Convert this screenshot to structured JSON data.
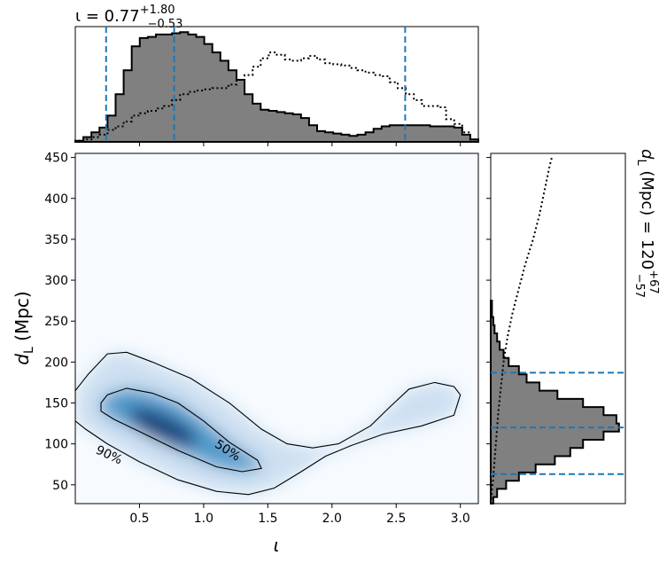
{
  "chart_data": {
    "type": "corner",
    "main": {
      "type": "heatmap",
      "xlabel": "ι",
      "ylabel": "d_L (Mpc)",
      "xlim": [
        0.0,
        3.14
      ],
      "ylim": [
        27,
        455
      ],
      "xticks": [
        "0.5",
        "1.0",
        "1.5",
        "2.0",
        "2.5",
        "3.0"
      ],
      "yticks": [
        "50",
        "100",
        "150",
        "200",
        "250",
        "300",
        "350",
        "400",
        "450"
      ],
      "colormap": "Blues",
      "density_peak": {
        "x": 0.65,
        "y": 122
      },
      "contours": [
        {
          "label": "50%",
          "points": [
            [
              0.2,
              150
            ],
            [
              0.25,
              160
            ],
            [
              0.4,
              168
            ],
            [
              0.6,
              162
            ],
            [
              0.8,
              150
            ],
            [
              1.0,
              128
            ],
            [
              1.2,
              102
            ],
            [
              1.42,
              80
            ],
            [
              1.45,
              70
            ],
            [
              1.3,
              66
            ],
            [
              1.1,
              72
            ],
            [
              0.8,
              92
            ],
            [
              0.5,
              115
            ],
            [
              0.3,
              130
            ],
            [
              0.2,
              140
            ]
          ]
        },
        {
          "label": "90%",
          "points": [
            [
              0.0,
              165
            ],
            [
              0.1,
              185
            ],
            [
              0.25,
              210
            ],
            [
              0.4,
              212
            ],
            [
              0.6,
              200
            ],
            [
              0.9,
              180
            ],
            [
              1.2,
              150
            ],
            [
              1.45,
              118
            ],
            [
              1.65,
              100
            ],
            [
              1.85,
              95
            ],
            [
              2.05,
              100
            ],
            [
              2.3,
              122
            ],
            [
              2.45,
              145
            ],
            [
              2.6,
              167
            ],
            [
              2.8,
              175
            ],
            [
              2.95,
              170
            ],
            [
              3.0,
              160
            ],
            [
              2.95,
              135
            ],
            [
              2.7,
              122
            ],
            [
              2.4,
              112
            ],
            [
              2.15,
              98
            ],
            [
              1.95,
              85
            ],
            [
              1.75,
              65
            ],
            [
              1.55,
              46
            ],
            [
              1.35,
              38
            ],
            [
              1.1,
              42
            ],
            [
              0.8,
              56
            ],
            [
              0.5,
              78
            ],
            [
              0.25,
              100
            ],
            [
              0.08,
              118
            ],
            [
              0.0,
              128
            ]
          ]
        }
      ]
    },
    "top_histogram": {
      "type": "histogram",
      "variable": "ι",
      "title_value": "0.77",
      "title_upper": "+1.80",
      "title_lower": "−0.53",
      "quantile_lines": [
        0.24,
        0.77,
        2.57
      ],
      "range": [
        0.0,
        3.14
      ],
      "bins": 50,
      "posterior": [
        1,
        4,
        8,
        12,
        22,
        40,
        60,
        80,
        87,
        88,
        90,
        90,
        91,
        92,
        90,
        88,
        82,
        75,
        68,
        60,
        52,
        40,
        32,
        27,
        26,
        25,
        24,
        23,
        20,
        14,
        9,
        8,
        7,
        6,
        5,
        6,
        8,
        11,
        13,
        14,
        14,
        14,
        14,
        14,
        13,
        13,
        13,
        12,
        6,
        2
      ],
      "prior": [
        1,
        2,
        4,
        6,
        10,
        13,
        17,
        22,
        24,
        26,
        28,
        30,
        35,
        40,
        42,
        43,
        44,
        45,
        45,
        48,
        52,
        56,
        63,
        70,
        75,
        73,
        69,
        68,
        70,
        72,
        69,
        66,
        65,
        64,
        62,
        60,
        58,
        56,
        55,
        50,
        45,
        40,
        35,
        30,
        30,
        29,
        19,
        15,
        8,
        2
      ]
    },
    "right_histogram": {
      "type": "histogram",
      "orientation": "horizontal",
      "variable": "d_L (Mpc)",
      "title_prefix": "d_L (Mpc) = ",
      "title_value": "120",
      "title_upper": "+67",
      "title_lower": "−57",
      "quantile_lines": [
        63,
        120,
        187
      ],
      "range": [
        27,
        455
      ],
      "bins_edges": [
        27,
        35,
        45,
        55,
        65,
        75,
        85,
        95,
        105,
        115,
        125,
        135,
        145,
        155,
        165,
        175,
        185,
        195,
        205,
        215,
        225,
        235,
        245,
        255,
        265,
        275
      ],
      "posterior": [
        2,
        5,
        12,
        22,
        35,
        50,
        62,
        72,
        88,
        100,
        98,
        88,
        72,
        52,
        38,
        28,
        22,
        14,
        10,
        7,
        5,
        3,
        2,
        1,
        1
      ],
      "prior_curve": [
        [
          0,
          27
        ],
        [
          2,
          60
        ],
        [
          4,
          100
        ],
        [
          6,
          140
        ],
        [
          8,
          170
        ],
        [
          10,
          200
        ],
        [
          13,
          230
        ],
        [
          17,
          260
        ],
        [
          22,
          290
        ],
        [
          27,
          320
        ],
        [
          33,
          350
        ],
        [
          38,
          380
        ],
        [
          42,
          410
        ],
        [
          46,
          440
        ],
        [
          48,
          452
        ]
      ]
    }
  }
}
